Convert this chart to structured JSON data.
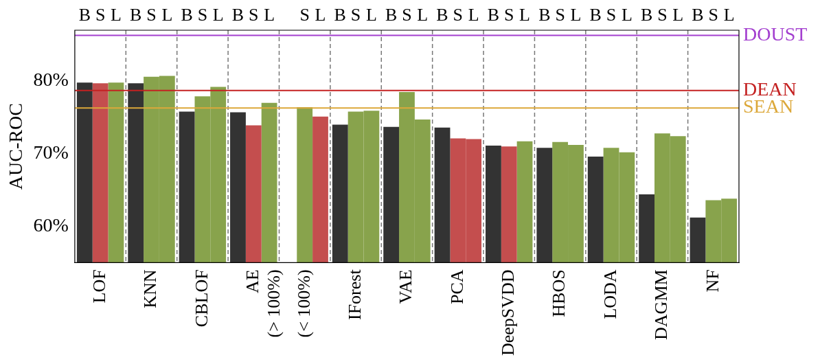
{
  "chart_data": {
    "type": "bar",
    "ylabel": "AUC-ROC",
    "categories": [
      "LOF",
      "KNN",
      "CBLOF",
      "AE\n(> 100%)",
      "(< 100%)",
      "IForest",
      "VAE",
      "PCA",
      "DeepSVDD",
      "HBOS",
      "LODA",
      "DAGMM",
      "NF"
    ],
    "series": [
      {
        "color": "#333333",
        "values": [
          79.8,
          79.7,
          75.8,
          75.7,
          null,
          74.0,
          73.7,
          73.6,
          71.1,
          70.8,
          69.6,
          64.4,
          61.2
        ]
      },
      {
        "colors": [
          "#c44e4e",
          "#88a34c",
          "#88a34c",
          "#c44e4e",
          "#88a34c",
          "#88a34c",
          "#88a34c",
          "#c44e4e",
          "#c44e4e",
          "#88a34c",
          "#88a34c",
          "#88a34c",
          "#88a34c"
        ],
        "values": [
          79.7,
          80.6,
          77.9,
          73.9,
          76.4,
          75.8,
          78.5,
          72.1,
          71.0,
          71.6,
          70.8,
          72.8,
          63.6
        ]
      },
      {
        "colors": [
          "#88a34c",
          "#88a34c",
          "#88a34c",
          "#88a34c",
          "#c44e4e",
          "#88a34c",
          "#88a34c",
          "#c44e4e",
          "#88a34c",
          "#88a34c",
          "#88a34c",
          "#88a34c",
          "#88a34c"
        ],
        "values": [
          79.8,
          80.7,
          79.2,
          77.0,
          75.1,
          75.9,
          74.7,
          72.0,
          71.7,
          71.2,
          70.2,
          72.4,
          63.8
        ]
      }
    ],
    "annotations": [
      "B",
      "S",
      "L",
      "B",
      "S",
      "L",
      "B",
      "S",
      "L",
      "B",
      "S",
      "L",
      "S",
      "L",
      "B",
      "S",
      "L",
      "B",
      "S",
      "L",
      "B",
      "S",
      "L",
      "B",
      "S",
      "L",
      "B",
      "S",
      "L",
      "B",
      "S",
      "L",
      "B",
      "S",
      "L",
      "B",
      "S",
      "L"
    ],
    "ylim": [
      55,
      87
    ],
    "yticks": [
      {
        "value": 60,
        "label": "60%"
      },
      {
        "value": 70,
        "label": "70%"
      },
      {
        "value": 80,
        "label": "80%"
      }
    ],
    "ref_lines": [
      {
        "axis": "y",
        "value": 86.3,
        "label": "DOUST",
        "color": "#a33fcf"
      },
      {
        "axis": "y",
        "value": 78.7,
        "label": "DEAN",
        "color": "#c42222"
      },
      {
        "axis": "y",
        "value": 76.3,
        "label": "SEAN",
        "color": "#dca83a"
      }
    ],
    "grid": "x",
    "legend": false
  }
}
